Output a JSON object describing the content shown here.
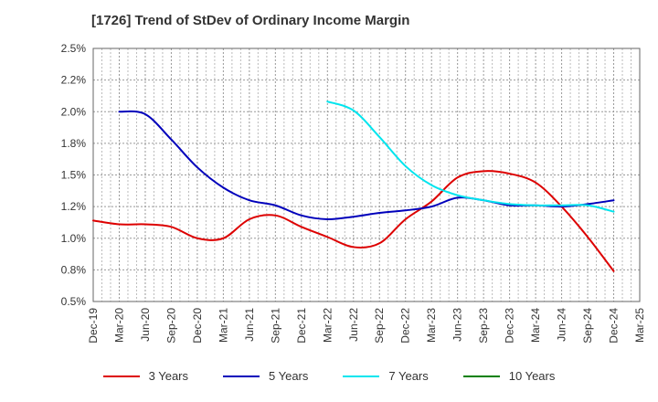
{
  "chart_data": {
    "type": "line",
    "title": "[1726]  Trend of StDev of Ordinary Income Margin",
    "xlabel": "",
    "ylabel": "",
    "x_ticks": [
      "Dec-19",
      "Mar-20",
      "Jun-20",
      "Sep-20",
      "Dec-20",
      "Mar-21",
      "Jun-21",
      "Sep-21",
      "Dec-21",
      "Mar-22",
      "Jun-22",
      "Sep-22",
      "Dec-22",
      "Mar-23",
      "Jun-23",
      "Sep-23",
      "Dec-23",
      "Mar-24",
      "Jun-24",
      "Sep-24",
      "Dec-24",
      "Mar-25"
    ],
    "y_ticks": [
      "0.5%",
      "0.8%",
      "1.0%",
      "1.2%",
      "1.5%",
      "1.8%",
      "2.0%",
      "2.2%",
      "2.5%"
    ],
    "ylim": [
      0.5,
      2.5
    ],
    "grid": true,
    "legend_position": "bottom",
    "series": [
      {
        "name": "3 Years",
        "color": "#dd0000",
        "x": [
          "Dec-19",
          "Mar-20",
          "Jun-20",
          "Sep-20",
          "Dec-20",
          "Mar-21",
          "Jun-21",
          "Sep-21",
          "Dec-21",
          "Mar-22",
          "Jun-22",
          "Sep-22",
          "Dec-22",
          "Mar-23",
          "Jun-23",
          "Sep-23",
          "Dec-23",
          "Mar-24",
          "Jun-24",
          "Sep-24",
          "Dec-24"
        ],
        "values": [
          1.14,
          1.11,
          1.11,
          1.09,
          1.0,
          1.0,
          1.15,
          1.18,
          1.09,
          1.01,
          0.93,
          0.96,
          1.15,
          1.29,
          1.48,
          1.53,
          1.51,
          1.44,
          1.25,
          1.01,
          0.74
        ]
      },
      {
        "name": "5 Years",
        "color": "#0000bb",
        "x": [
          "Mar-20",
          "Jun-20",
          "Sep-20",
          "Dec-20",
          "Mar-21",
          "Jun-21",
          "Sep-21",
          "Dec-21",
          "Mar-22",
          "Jun-22",
          "Sep-22",
          "Dec-22",
          "Mar-23",
          "Jun-23",
          "Sep-23",
          "Dec-23",
          "Mar-24",
          "Jun-24",
          "Sep-24",
          "Dec-24"
        ],
        "values": [
          2.0,
          1.98,
          1.78,
          1.56,
          1.4,
          1.3,
          1.26,
          1.18,
          1.15,
          1.17,
          1.2,
          1.22,
          1.25,
          1.32,
          1.3,
          1.26,
          1.26,
          1.25,
          1.27,
          1.3
        ]
      },
      {
        "name": "7 Years",
        "color": "#00e5ee",
        "x": [
          "Mar-22",
          "Jun-22",
          "Sep-22",
          "Dec-22",
          "Mar-23",
          "Jun-23",
          "Sep-23",
          "Dec-23",
          "Mar-24",
          "Jun-24",
          "Sep-24",
          "Dec-24"
        ],
        "values": [
          2.08,
          2.01,
          1.8,
          1.57,
          1.42,
          1.34,
          1.3,
          1.27,
          1.26,
          1.26,
          1.26,
          1.21
        ]
      },
      {
        "name": "10 Years",
        "color": "#008000",
        "x": [],
        "values": []
      }
    ]
  }
}
